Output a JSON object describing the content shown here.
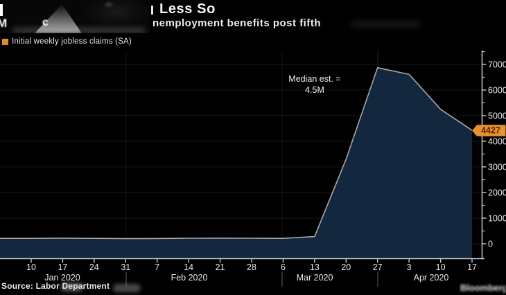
{
  "header": {
    "title_line1": "Less So",
    "title_line2": "nemployment benefits post fifth"
  },
  "legend": {
    "label": "Initial weekly jobless claims (SA)",
    "swatch_color": "#e08a20"
  },
  "annotation": {
    "line1": "Median est. =",
    "line2": "4.5M"
  },
  "source": "Source: Labor Department",
  "watermark": "Bloomberg",
  "censored_fragments": {
    "glyph_m": "M",
    "glyph_c": "c"
  },
  "colors": {
    "background": "#000000",
    "accent_orange": "#e08a20",
    "area_fill": "#13273f",
    "series_line": "#a9aaa5",
    "axis": "#c9c9c9",
    "tick_text": "#e8e8e8",
    "badge_fill": "#e5922f",
    "badge_text": "#5f1c02",
    "gridline": "rgba(255,255,255,0.10)"
  },
  "chart_data": {
    "type": "area",
    "title": "Less So — nemployment benefits post fifth",
    "series": [
      {
        "name": "Initial weekly jobless claims (SA)",
        "values_thousands": [
          210,
          220,
          210,
          200,
          205,
          215,
          220,
          215,
          210,
          280,
          3300,
          6870,
          6610,
          5250,
          4427
        ]
      }
    ],
    "x_tick_labels": [
      "10",
      "17",
      "24",
      "31",
      "7",
      "14",
      "21",
      "28",
      "6",
      "13",
      "20",
      "27",
      "3",
      "10",
      "17"
    ],
    "month_labels": [
      "Jan 2020",
      "Feb 2020",
      "Mar 2020",
      "Apr 2020"
    ],
    "y_ticks": [
      0,
      1000,
      2000,
      3000,
      4000,
      5000,
      6000,
      7000
    ],
    "ylim": [
      0,
      7500
    ],
    "y_axis_side": "right",
    "last_value_label": "4427",
    "annotation": "Median est. = 4.5M",
    "legend_position": "top-left",
    "grid": true
  }
}
